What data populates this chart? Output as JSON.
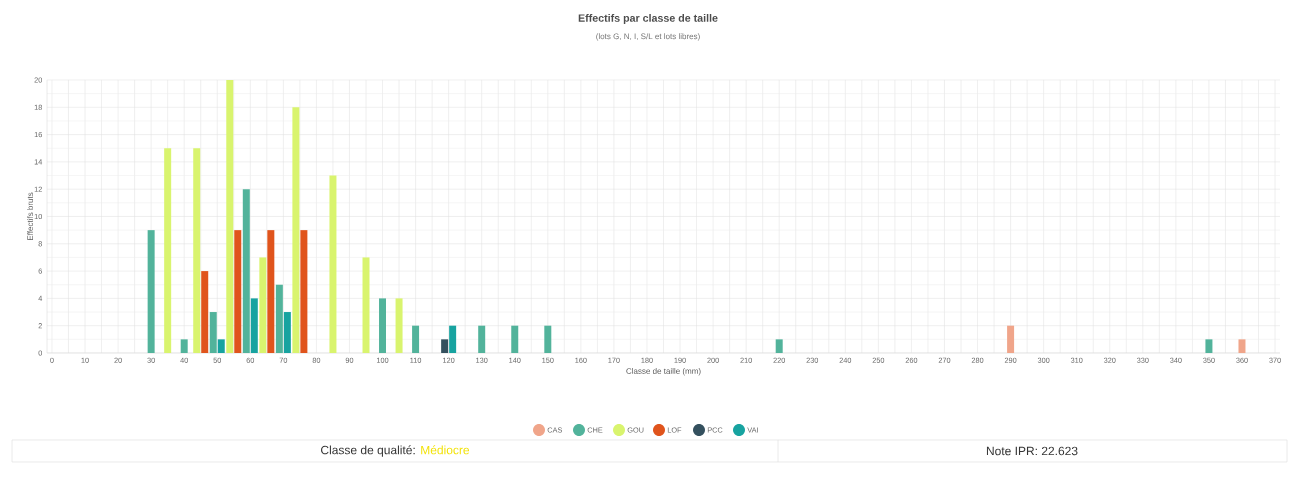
{
  "chart_data": {
    "type": "bar",
    "title": "Effectifs par classe de taille",
    "subtitle": "(lots G, N, I, S/L et lots libres)",
    "xlabel": "Classe de taille (mm)",
    "ylabel": "Effectifs bruts",
    "categories": [
      "0",
      null,
      "10",
      null,
      "20",
      null,
      "30",
      null,
      "40",
      null,
      "50",
      null,
      "60",
      null,
      "70",
      null,
      "80",
      null,
      "90",
      null,
      "100",
      null,
      "110",
      null,
      "120",
      null,
      "130",
      null,
      "140",
      null,
      "150",
      null,
      "160",
      null,
      "170",
      null,
      "180",
      null,
      "190",
      null,
      "200",
      null,
      "210",
      null,
      "220",
      null,
      "230",
      null,
      "240",
      null,
      "250",
      null,
      "260",
      null,
      "270",
      null,
      "280",
      null,
      "290",
      null,
      "300",
      null,
      "310",
      null,
      "320",
      null,
      "330",
      null,
      "340",
      null,
      "350",
      null,
      "360",
      null,
      "370"
    ],
    "series": [
      {
        "name": "CAS",
        "color": "#f0a58a",
        "values": [
          null,
          null,
          null,
          null,
          null,
          null,
          null,
          null,
          null,
          null,
          null,
          null,
          null,
          null,
          null,
          null,
          null,
          null,
          null,
          null,
          null,
          null,
          null,
          null,
          null,
          null,
          null,
          null,
          null,
          null,
          null,
          null,
          null,
          null,
          null,
          null,
          null,
          null,
          null,
          null,
          null,
          null,
          null,
          null,
          null,
          null,
          null,
          null,
          null,
          null,
          null,
          null,
          null,
          null,
          null,
          null,
          null,
          null,
          2,
          null,
          null,
          null,
          null,
          null,
          null,
          null,
          null,
          null,
          null,
          null,
          null,
          null,
          1,
          null,
          null
        ]
      },
      {
        "name": "CHE",
        "color": "#52b39b",
        "values": [
          null,
          null,
          null,
          null,
          null,
          null,
          9,
          null,
          1,
          null,
          3,
          null,
          12,
          null,
          5,
          null,
          null,
          null,
          null,
          null,
          4,
          null,
          2,
          null,
          null,
          null,
          2,
          null,
          2,
          null,
          2,
          null,
          null,
          null,
          null,
          null,
          null,
          null,
          null,
          null,
          null,
          null,
          null,
          null,
          1,
          null,
          null,
          null,
          null,
          null,
          null,
          null,
          null,
          null,
          null,
          null,
          null,
          null,
          null,
          null,
          null,
          null,
          null,
          null,
          null,
          null,
          null,
          null,
          null,
          null,
          1,
          null,
          null,
          null,
          null
        ]
      },
      {
        "name": "GOU",
        "color": "#d9f46e",
        "values": [
          null,
          null,
          null,
          null,
          null,
          null,
          null,
          15,
          null,
          15,
          null,
          20,
          null,
          7,
          null,
          18,
          null,
          13,
          null,
          7,
          null,
          4,
          null,
          null,
          null,
          null,
          null,
          null,
          null,
          null,
          null,
          null,
          null,
          null,
          null,
          null,
          null,
          null,
          null,
          null,
          null,
          null,
          null,
          null,
          null,
          null,
          null,
          null,
          null,
          null,
          null,
          null,
          null,
          null,
          null,
          null,
          null,
          null,
          null,
          null,
          null,
          null,
          null,
          null,
          null,
          null,
          null,
          null,
          null,
          null,
          null,
          null,
          null,
          null,
          null
        ]
      },
      {
        "name": "LOF",
        "color": "#e0541c",
        "values": [
          null,
          null,
          null,
          null,
          null,
          null,
          null,
          null,
          null,
          6,
          null,
          9,
          null,
          9,
          null,
          9,
          null,
          null,
          null,
          null,
          null,
          null,
          null,
          null,
          null,
          null,
          null,
          null,
          null,
          null,
          null,
          null,
          null,
          null,
          null,
          null,
          null,
          null,
          null,
          null,
          null,
          null,
          null,
          null,
          null,
          null,
          null,
          null,
          null,
          null,
          null,
          null,
          null,
          null,
          null,
          null,
          null,
          null,
          null,
          null,
          null,
          null,
          null,
          null,
          null,
          null,
          null,
          null,
          null,
          null,
          null,
          null,
          null,
          null,
          null
        ]
      },
      {
        "name": "PCC",
        "color": "#34505e",
        "values": [
          null,
          null,
          null,
          null,
          null,
          null,
          null,
          null,
          null,
          null,
          null,
          null,
          null,
          null,
          null,
          null,
          null,
          null,
          null,
          null,
          null,
          null,
          null,
          null,
          1,
          null,
          null,
          null,
          null,
          null,
          null,
          null,
          null,
          null,
          null,
          null,
          null,
          null,
          null,
          null,
          null,
          null,
          null,
          null,
          null,
          null,
          null,
          null,
          null,
          null,
          null,
          null,
          null,
          null,
          null,
          null,
          null,
          null,
          null,
          null,
          null,
          null,
          null,
          null,
          null,
          null,
          null,
          null,
          null,
          null,
          null,
          null,
          null,
          null,
          null
        ]
      },
      {
        "name": "VAI",
        "color": "#17a3a0",
        "values": [
          null,
          null,
          null,
          null,
          null,
          null,
          null,
          null,
          null,
          null,
          1,
          null,
          4,
          null,
          3,
          null,
          null,
          null,
          null,
          null,
          null,
          null,
          null,
          null,
          2,
          null,
          null,
          null,
          null,
          null,
          null,
          null,
          null,
          null,
          null,
          null,
          null,
          null,
          null,
          null,
          null,
          null,
          null,
          null,
          null,
          null,
          null,
          null,
          null,
          null,
          null,
          null,
          null,
          null,
          null,
          null,
          null,
          null,
          null,
          null,
          null,
          null,
          null,
          null,
          null,
          null,
          null,
          null,
          null,
          null,
          null,
          null,
          null,
          null,
          null
        ]
      }
    ],
    "ylim": [
      0,
      20
    ],
    "yticks": [
      0,
      2,
      4,
      6,
      8,
      10,
      12,
      14,
      16,
      18,
      20
    ],
    "grid": true,
    "legend": "bottom",
    "annotations": [
      "Classe de qualité:",
      "Médiocre",
      "Note IPR: 22.623"
    ]
  }
}
